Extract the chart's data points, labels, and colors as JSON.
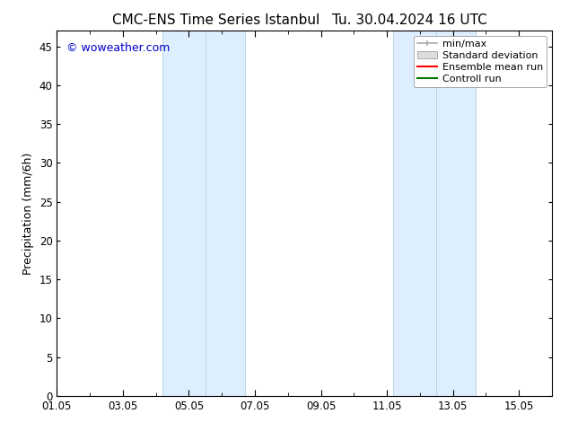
{
  "title": "CMC-ENS Time Series Istanbul",
  "title_right": "Tu. 30.04.2024 16 UTC",
  "ylabel": "Precipitation (mm/6h)",
  "watermark": "© woweather.com",
  "watermark_color": "#0000cc",
  "background_color": "#ffffff",
  "plot_bg_color": "#ffffff",
  "xmin": 0,
  "xmax": 15,
  "ymin": 0,
  "ymax": 47,
  "yticks": [
    0,
    5,
    10,
    15,
    20,
    25,
    30,
    35,
    40,
    45
  ],
  "xtick_labels": [
    "01.05",
    "03.05",
    "05.05",
    "07.05",
    "09.05",
    "11.05",
    "13.05",
    "15.05"
  ],
  "xtick_positions": [
    0,
    2,
    4,
    6,
    8,
    10,
    12,
    14
  ],
  "shaded_bands": [
    {
      "xmin": 3.2,
      "xmax": 5.7,
      "color": "#ddeeff"
    },
    {
      "xmin": 10.2,
      "xmax": 12.7,
      "color": "#ddeeff"
    }
  ],
  "shaded_band_lines": [
    {
      "x": 3.2,
      "color": "#b8d4e8"
    },
    {
      "x": 4.5,
      "color": "#b8d4e8"
    },
    {
      "x": 5.7,
      "color": "#b8d4e8"
    },
    {
      "x": 10.2,
      "color": "#b8d4e8"
    },
    {
      "x": 11.5,
      "color": "#b8d4e8"
    },
    {
      "x": 12.7,
      "color": "#b8d4e8"
    }
  ],
  "legend_items": [
    {
      "label": "min/max",
      "type": "hbar",
      "color": "#aaaaaa"
    },
    {
      "label": "Standard deviation",
      "type": "fillbar",
      "facecolor": "#dddddd",
      "edgecolor": "#aaaaaa"
    },
    {
      "label": "Ensemble mean run",
      "type": "line",
      "color": "#ff0000"
    },
    {
      "label": "Controll run",
      "type": "line",
      "color": "#007700"
    }
  ],
  "title_fontsize": 11,
  "axis_fontsize": 9,
  "tick_fontsize": 8.5,
  "watermark_fontsize": 9,
  "legend_fontsize": 8
}
